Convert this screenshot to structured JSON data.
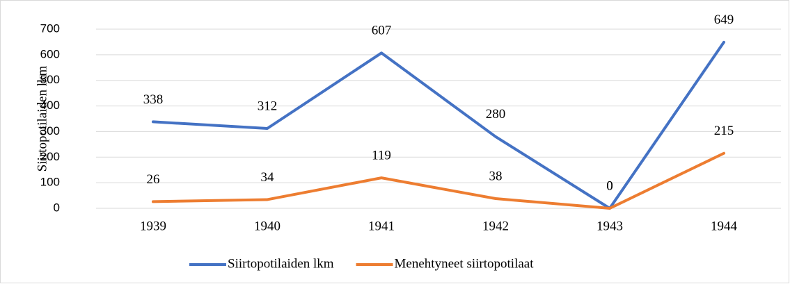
{
  "chart_data": {
    "type": "line",
    "y_axis_label": "Siirtopotilaiden  lkm",
    "categories": [
      "1939",
      "1940",
      "1941",
      "1942",
      "1943",
      "1944"
    ],
    "series": [
      {
        "name": "Siirtopotilaiden lkm",
        "color": "#4472c4",
        "values": [
          338,
          312,
          607,
          280,
          0,
          649
        ]
      },
      {
        "name": "Menehtyneet siirtopotilaat",
        "color": "#ed7d31",
        "values": [
          26,
          34,
          119,
          38,
          0,
          215
        ]
      }
    ],
    "ylim": [
      0,
      700
    ],
    "yticks": [
      0,
      100,
      200,
      300,
      400,
      500,
      600,
      700
    ],
    "grid": true,
    "data_labels": true,
    "legend": "bottom"
  }
}
